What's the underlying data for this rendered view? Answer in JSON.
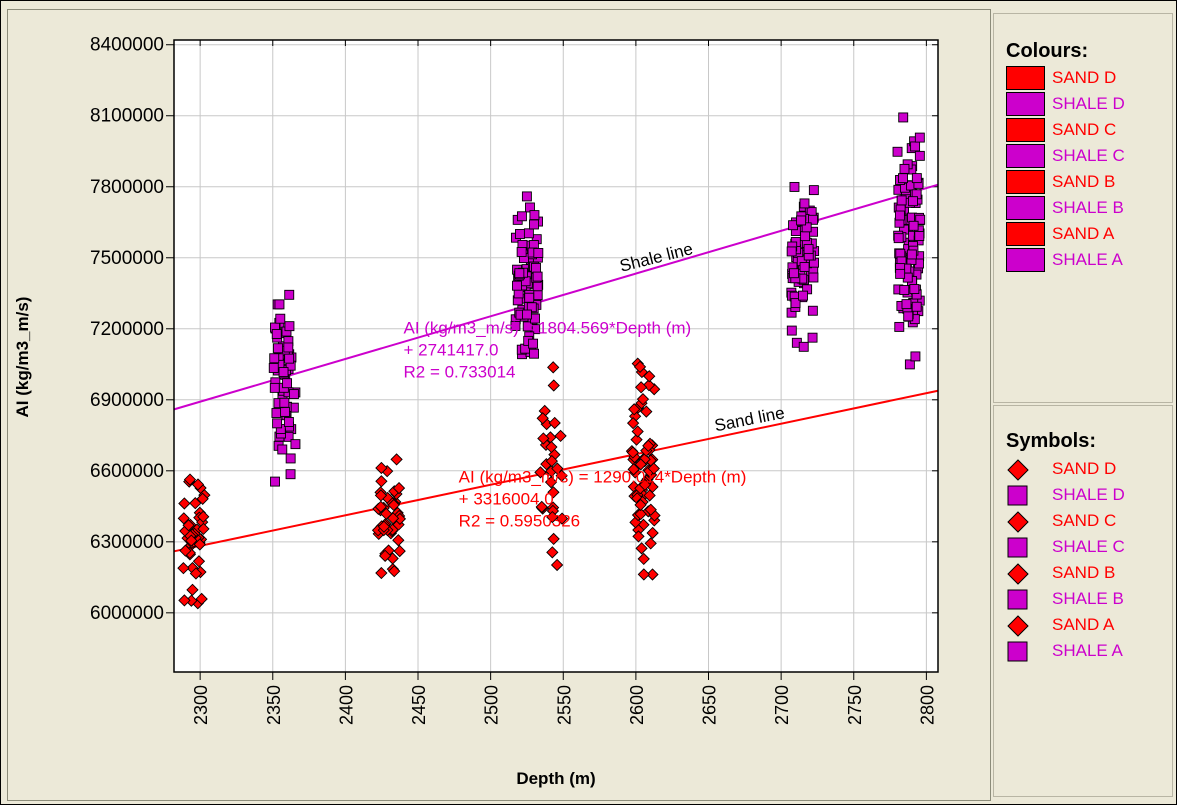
{
  "chart_data": {
    "type": "scatter",
    "xlabel": "Depth  (m)",
    "ylabel": "AI (kg/m3_m/s)",
    "xlim": [
      2282,
      2808
    ],
    "ylim": [
      5750000,
      8420000
    ],
    "xticks": [
      2300,
      2350,
      2400,
      2450,
      2500,
      2550,
      2600,
      2650,
      2700,
      2750,
      2800
    ],
    "yticks": [
      6000000,
      6300000,
      6600000,
      6900000,
      7200000,
      7500000,
      7800000,
      8100000,
      8400000
    ],
    "grid": true,
    "series": [
      {
        "name": "SAND A",
        "marker": "diamond",
        "color": "#ff0000",
        "x_center": 2295,
        "y_center": 6320000,
        "y_spread": 230000,
        "count": 45
      },
      {
        "name": "SHALE A",
        "marker": "square",
        "color": "#cc00cc",
        "x_center": 2358,
        "y_center": 6950000,
        "y_spread": 330000,
        "count": 70
      },
      {
        "name": "SAND B",
        "marker": "diamond",
        "color": "#ff0000",
        "x_center": 2430,
        "y_center": 6400000,
        "y_spread": 200000,
        "count": 45
      },
      {
        "name": "SHALE B",
        "marker": "square",
        "color": "#cc00cc",
        "x_center": 2525,
        "y_center": 7400000,
        "y_spread": 280000,
        "count": 80
      },
      {
        "name": "SAND C",
        "marker": "diamond",
        "color": "#ff0000",
        "x_center": 2542,
        "y_center": 6600000,
        "y_spread": 350000,
        "count": 30
      },
      {
        "name": "SAND D",
        "marker": "diamond",
        "color": "#ff0000",
        "x_center": 2605,
        "y_center": 6600000,
        "y_spread": 380000,
        "count": 70
      },
      {
        "name": "SHALE C",
        "marker": "square",
        "color": "#cc00cc",
        "x_center": 2715,
        "y_center": 7500000,
        "y_spread": 280000,
        "count": 80
      },
      {
        "name": "SHALE D",
        "marker": "square",
        "color": "#cc00cc",
        "x_center": 2788,
        "y_center": 7600000,
        "y_spread": 400000,
        "count": 110
      }
    ],
    "regression": [
      {
        "label": "Shale line",
        "color": "#cc00cc",
        "slope": 1804.569,
        "intercept": 2741417.0,
        "equation_line1": "AI  (kg/m3_m/s) = 1804.569*Depth  (m)",
        "equation_line2": "+ 2741417.0",
        "r2_text": "R2 = 0.733014"
      },
      {
        "label": "Sand line",
        "color": "#ff0000",
        "slope": 1290.014,
        "intercept": 3316004.0,
        "equation_line1": "AI  (kg/m3_m/s) = 1290.014*Depth  (m)",
        "equation_line2": "+ 3316004.0",
        "r2_text": "R2 = 0.5950326"
      }
    ]
  },
  "legend_colours": {
    "title": "Colours:",
    "items": [
      {
        "label": "SAND D",
        "color": "#ff0000"
      },
      {
        "label": "SHALE D",
        "color": "#cc00cc"
      },
      {
        "label": "SAND C",
        "color": "#ff0000"
      },
      {
        "label": "SHALE C",
        "color": "#cc00cc"
      },
      {
        "label": "SAND B",
        "color": "#ff0000"
      },
      {
        "label": "SHALE B",
        "color": "#cc00cc"
      },
      {
        "label": "SAND A",
        "color": "#ff0000"
      },
      {
        "label": "SHALE A",
        "color": "#cc00cc"
      }
    ]
  },
  "legend_symbols": {
    "title": "Symbols:",
    "items": [
      {
        "label": "SAND D",
        "marker": "diamond",
        "color": "#ff0000"
      },
      {
        "label": "SHALE D",
        "marker": "square",
        "color": "#cc00cc"
      },
      {
        "label": "SAND C",
        "marker": "diamond",
        "color": "#ff0000"
      },
      {
        "label": "SHALE C",
        "marker": "square",
        "color": "#cc00cc"
      },
      {
        "label": "SAND B",
        "marker": "diamond",
        "color": "#ff0000"
      },
      {
        "label": "SHALE B",
        "marker": "square",
        "color": "#cc00cc"
      },
      {
        "label": "SAND A",
        "marker": "diamond",
        "color": "#ff0000"
      },
      {
        "label": "SHALE A",
        "marker": "square",
        "color": "#cc00cc"
      }
    ]
  }
}
